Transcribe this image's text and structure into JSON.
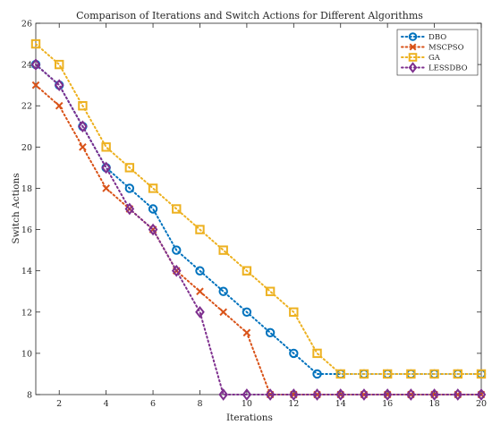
{
  "chart_data": {
    "type": "line",
    "title": "Comparison of Iterations and Switch Actions for Different Algorithms",
    "xlabel": "Iterations",
    "ylabel": "Switch Actions",
    "xlim": [
      1,
      20
    ],
    "ylim": [
      8,
      26
    ],
    "xticks": [
      2,
      4,
      6,
      8,
      10,
      12,
      14,
      16,
      18,
      20
    ],
    "yticks": [
      8,
      10,
      12,
      14,
      16,
      18,
      20,
      22,
      24,
      26
    ],
    "grid": false,
    "legend_position": "top-right",
    "x": [
      1,
      2,
      3,
      4,
      5,
      6,
      7,
      8,
      9,
      10,
      11,
      12,
      13,
      14,
      15,
      16,
      17,
      18,
      19,
      20
    ],
    "series": [
      {
        "name": "DBO",
        "color": "#0072BD",
        "marker": "circle",
        "line": "dotted",
        "values": [
          24,
          23,
          21,
          19,
          18,
          17,
          15,
          14,
          13,
          12,
          11,
          10,
          9,
          9,
          9,
          9,
          9,
          9,
          9,
          9
        ]
      },
      {
        "name": "MSCPSO",
        "color": "#D95319",
        "marker": "x",
        "line": "dotted",
        "values": [
          23,
          22,
          20,
          18,
          17,
          16,
          14,
          13,
          12,
          11,
          8,
          8,
          8,
          8,
          8,
          8,
          8,
          8,
          8,
          8
        ]
      },
      {
        "name": "GA",
        "color": "#EDB120",
        "marker": "square",
        "line": "dotted",
        "values": [
          25,
          24,
          22,
          20,
          19,
          18,
          17,
          16,
          15,
          14,
          13,
          12,
          10,
          9,
          9,
          9,
          9,
          9,
          9,
          9
        ]
      },
      {
        "name": "LESSDBO",
        "color": "#7E2F8E",
        "marker": "diamond",
        "line": "dotted",
        "values": [
          24,
          23,
          21,
          19,
          17,
          16,
          14,
          12,
          8,
          8,
          8,
          8,
          8,
          8,
          8,
          8,
          8,
          8,
          8,
          8
        ]
      }
    ]
  }
}
